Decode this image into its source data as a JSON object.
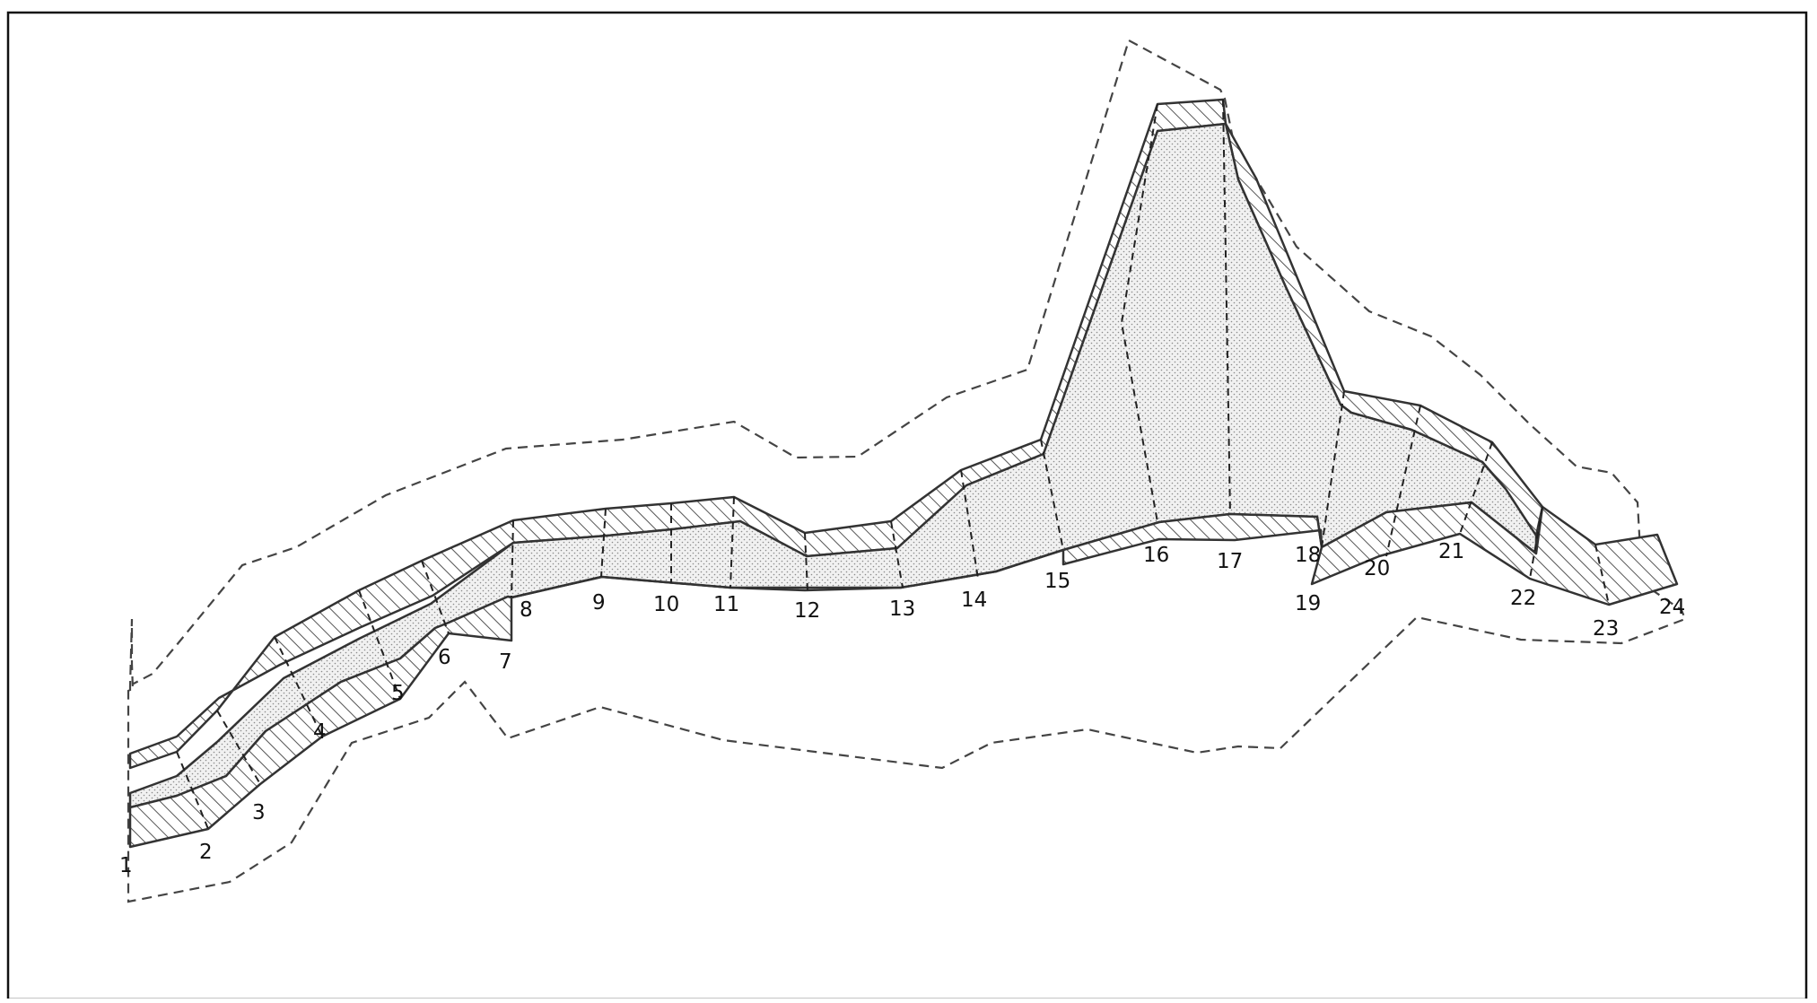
{
  "diagram": {
    "section_labels": [
      "1",
      "2",
      "3",
      "4",
      "5",
      "6",
      "7",
      "8",
      "9",
      "10",
      "11",
      "12",
      "13",
      "14",
      "15",
      "16",
      "17",
      "18",
      "19",
      "20",
      "21",
      "22",
      "23",
      "24"
    ],
    "colors": {
      "line": "#333333",
      "dashed_line": "#444444",
      "hatch": "#555555",
      "stipple": "#8a8a8a",
      "background": "#ffffff"
    },
    "legend_shading": [
      "diagonal-hatching",
      "dot-stipple"
    ]
  }
}
